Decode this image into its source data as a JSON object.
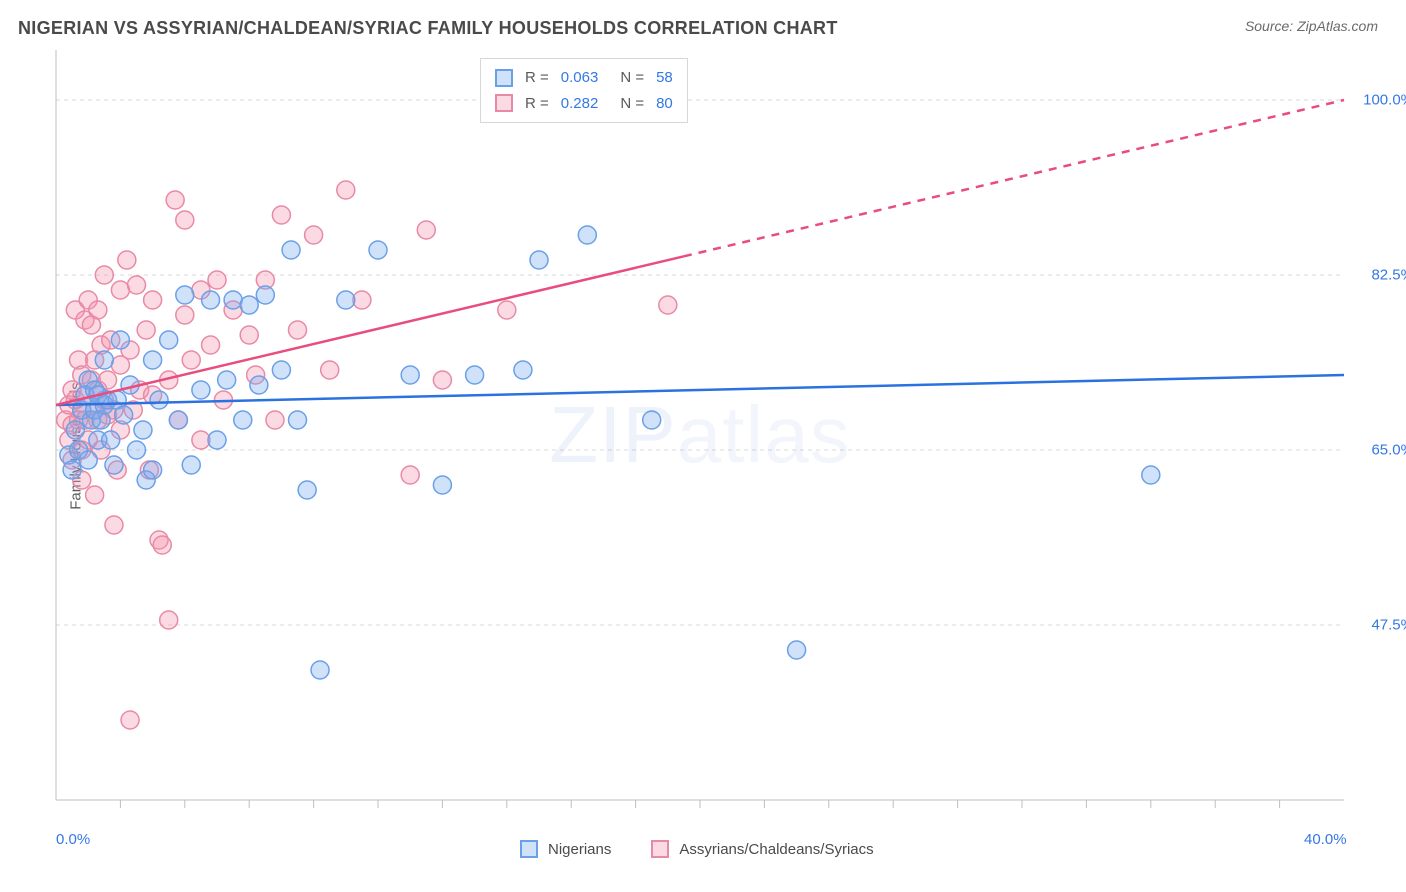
{
  "header": {
    "title": "NIGERIAN VS ASSYRIAN/CHALDEAN/SYRIAC FAMILY HOUSEHOLDS CORRELATION CHART",
    "source_prefix": "Source: ",
    "source_name": "ZipAtlas.com"
  },
  "chart": {
    "type": "scatter",
    "y_axis_label": "Family Households",
    "xlim": [
      0.0,
      40.0
    ],
    "ylim": [
      30.0,
      105.0
    ],
    "x_ticks": [
      {
        "v": 0.0,
        "label": "0.0%"
      },
      {
        "v": 40.0,
        "label": "40.0%"
      }
    ],
    "x_minor_ticks": [
      2,
      4,
      6,
      8,
      10,
      12,
      14,
      16,
      18,
      20,
      22,
      24,
      26,
      28,
      30,
      32,
      34,
      36,
      38
    ],
    "y_gridlines": [
      {
        "v": 47.5,
        "label": "47.5%"
      },
      {
        "v": 65.0,
        "label": "65.0%"
      },
      {
        "v": 82.5,
        "label": "82.5%"
      },
      {
        "v": 100.0,
        "label": "100.0%"
      }
    ],
    "background_color": "#ffffff",
    "grid_color": "#d8d8d8",
    "axis_color": "#bfbfbf",
    "tick_color": "#bfbfbf",
    "label_color": "#3478e5",
    "text_color": "#5a5a5a",
    "marker_radius": 9,
    "marker_stroke_width": 1.5,
    "trend_line_width": 2.5,
    "watermark_text_a": "ZIP",
    "watermark_text_b": "atlas",
    "series": [
      {
        "key": "nigerians",
        "label": "Nigerians",
        "fill": "rgba(120,170,240,0.35)",
        "stroke": "#6aa0e8",
        "swatch_fill": "rgba(120,170,240,0.35)",
        "swatch_border": "#6aa0e8",
        "trend_color": "#2a72e0",
        "trend_start": {
          "x": 0.0,
          "y": 69.5
        },
        "trend_end": {
          "x": 40.0,
          "y": 72.5
        },
        "trend_dash_from_x": null,
        "R": "0.063",
        "N": "58",
        "points": [
          [
            0.4,
            64.5
          ],
          [
            0.5,
            63.0
          ],
          [
            0.6,
            67.0
          ],
          [
            0.7,
            65.0
          ],
          [
            0.8,
            69.0
          ],
          [
            0.9,
            70.5
          ],
          [
            1.0,
            64.0
          ],
          [
            1.0,
            72.0
          ],
          [
            1.1,
            68.0
          ],
          [
            1.2,
            69.0
          ],
          [
            1.2,
            71.0
          ],
          [
            1.3,
            70.5
          ],
          [
            1.3,
            66.0
          ],
          [
            1.4,
            68.0
          ],
          [
            1.5,
            69.5
          ],
          [
            1.5,
            74.0
          ],
          [
            1.6,
            70.0
          ],
          [
            1.7,
            66.0
          ],
          [
            1.8,
            63.5
          ],
          [
            1.9,
            70.0
          ],
          [
            2.0,
            76.0
          ],
          [
            2.1,
            68.5
          ],
          [
            2.3,
            71.5
          ],
          [
            2.5,
            65.0
          ],
          [
            2.7,
            67.0
          ],
          [
            2.8,
            62.0
          ],
          [
            3.0,
            74.0
          ],
          [
            3.0,
            63.0
          ],
          [
            3.2,
            70.0
          ],
          [
            3.5,
            76.0
          ],
          [
            3.8,
            68.0
          ],
          [
            4.0,
            80.5
          ],
          [
            4.2,
            63.5
          ],
          [
            4.5,
            71.0
          ],
          [
            4.8,
            80.0
          ],
          [
            5.0,
            66.0
          ],
          [
            5.3,
            72.0
          ],
          [
            5.5,
            80.0
          ],
          [
            5.8,
            68.0
          ],
          [
            6.0,
            79.5
          ],
          [
            6.3,
            71.5
          ],
          [
            6.5,
            80.5
          ],
          [
            7.0,
            73.0
          ],
          [
            7.3,
            85.0
          ],
          [
            7.5,
            68.0
          ],
          [
            7.8,
            61.0
          ],
          [
            8.2,
            43.0
          ],
          [
            9.0,
            80.0
          ],
          [
            10.0,
            85.0
          ],
          [
            11.0,
            72.5
          ],
          [
            12.0,
            61.5
          ],
          [
            13.0,
            72.5
          ],
          [
            14.5,
            73.0
          ],
          [
            15.0,
            84.0
          ],
          [
            16.5,
            86.5
          ],
          [
            18.5,
            68.0
          ],
          [
            23.0,
            45.0
          ],
          [
            34.0,
            62.5
          ]
        ]
      },
      {
        "key": "assyrians",
        "label": "Assyrians/Chaldeans/Syriacs",
        "fill": "rgba(245,150,175,0.35)",
        "stroke": "#e88aa5",
        "swatch_fill": "rgba(245,150,175,0.35)",
        "swatch_border": "#e88aa5",
        "trend_color": "#e84d7e",
        "trend_start": {
          "x": 0.0,
          "y": 69.5
        },
        "trend_end": {
          "x": 40.0,
          "y": 100.0
        },
        "trend_dash_from_x": 19.5,
        "R": "0.282",
        "N": "80",
        "points": [
          [
            0.3,
            68.0
          ],
          [
            0.4,
            69.5
          ],
          [
            0.4,
            66.0
          ],
          [
            0.5,
            71.0
          ],
          [
            0.5,
            67.5
          ],
          [
            0.5,
            64.0
          ],
          [
            0.6,
            79.0
          ],
          [
            0.6,
            70.0
          ],
          [
            0.7,
            74.0
          ],
          [
            0.7,
            68.0
          ],
          [
            0.8,
            69.0
          ],
          [
            0.8,
            72.5
          ],
          [
            0.8,
            65.0
          ],
          [
            0.8,
            62.0
          ],
          [
            0.9,
            78.0
          ],
          [
            0.9,
            70.5
          ],
          [
            0.9,
            68.0
          ],
          [
            1.0,
            80.0
          ],
          [
            1.0,
            66.0
          ],
          [
            1.1,
            77.5
          ],
          [
            1.1,
            72.0
          ],
          [
            1.2,
            69.0
          ],
          [
            1.2,
            74.0
          ],
          [
            1.2,
            60.5
          ],
          [
            1.3,
            71.0
          ],
          [
            1.3,
            68.0
          ],
          [
            1.3,
            79.0
          ],
          [
            1.4,
            65.0
          ],
          [
            1.4,
            75.5
          ],
          [
            1.5,
            70.0
          ],
          [
            1.5,
            82.5
          ],
          [
            1.6,
            68.5
          ],
          [
            1.6,
            72.0
          ],
          [
            1.7,
            76.0
          ],
          [
            1.8,
            69.0
          ],
          [
            1.8,
            57.5
          ],
          [
            1.9,
            63.0
          ],
          [
            2.0,
            73.5
          ],
          [
            2.0,
            81.0
          ],
          [
            2.0,
            67.0
          ],
          [
            2.2,
            84.0
          ],
          [
            2.3,
            75.0
          ],
          [
            2.3,
            38.0
          ],
          [
            2.4,
            69.0
          ],
          [
            2.5,
            81.5
          ],
          [
            2.6,
            71.0
          ],
          [
            2.8,
            77.0
          ],
          [
            2.9,
            63.0
          ],
          [
            3.0,
            70.5
          ],
          [
            3.0,
            80.0
          ],
          [
            3.2,
            56.0
          ],
          [
            3.3,
            55.5
          ],
          [
            3.5,
            72.0
          ],
          [
            3.5,
            48.0
          ],
          [
            3.7,
            90.0
          ],
          [
            3.8,
            68.0
          ],
          [
            4.0,
            78.5
          ],
          [
            4.0,
            88.0
          ],
          [
            4.2,
            74.0
          ],
          [
            4.5,
            81.0
          ],
          [
            4.5,
            66.0
          ],
          [
            4.8,
            75.5
          ],
          [
            5.0,
            82.0
          ],
          [
            5.2,
            70.0
          ],
          [
            5.5,
            79.0
          ],
          [
            6.0,
            76.5
          ],
          [
            6.2,
            72.5
          ],
          [
            6.5,
            82.0
          ],
          [
            6.8,
            68.0
          ],
          [
            7.0,
            88.5
          ],
          [
            7.5,
            77.0
          ],
          [
            8.0,
            86.5
          ],
          [
            8.5,
            73.0
          ],
          [
            9.0,
            91.0
          ],
          [
            9.5,
            80.0
          ],
          [
            11.0,
            62.5
          ],
          [
            11.5,
            87.0
          ],
          [
            12.0,
            72.0
          ],
          [
            14.0,
            79.0
          ],
          [
            19.0,
            79.5
          ]
        ]
      }
    ],
    "top_legend": {
      "r_label": "R =",
      "n_label": "N ="
    }
  }
}
